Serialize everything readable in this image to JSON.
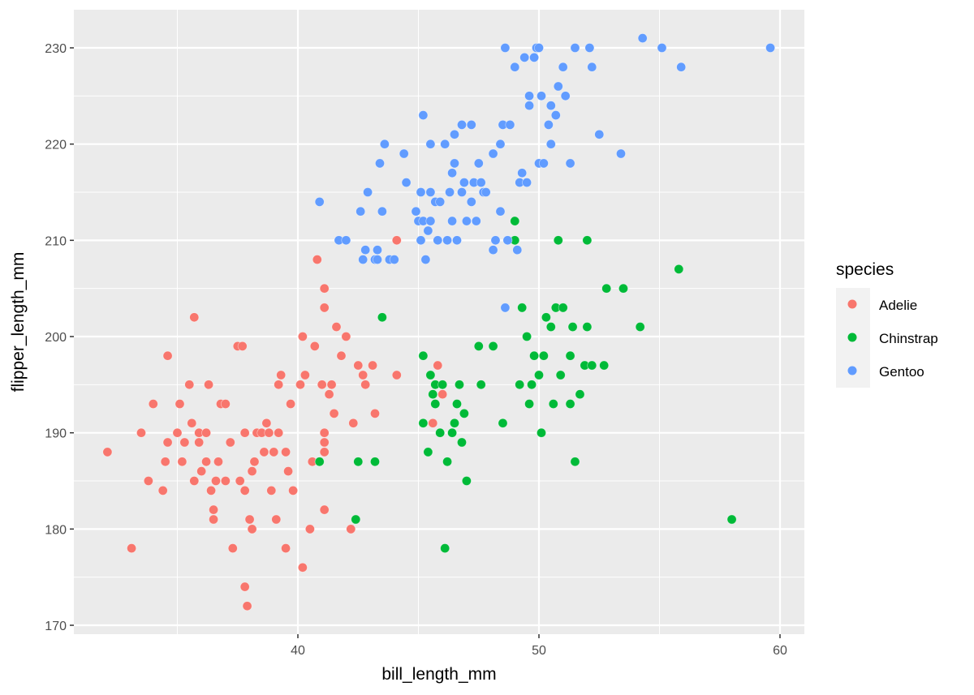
{
  "chart_data": {
    "type": "scatter",
    "title": "",
    "xlabel": "bill_length_mm",
    "ylabel": "flipper_length_mm",
    "xlim": [
      31.0,
      61.3
    ],
    "ylim": [
      168.9,
      233.9
    ],
    "x_ticks": [
      40,
      50,
      60
    ],
    "y_ticks": [
      170,
      180,
      190,
      200,
      210,
      220,
      230
    ],
    "grid": true,
    "legend": {
      "title": "species",
      "position": "right",
      "entries": [
        {
          "label": "Adelie",
          "color": "#F8766D"
        },
        {
          "label": "Chinstrap",
          "color": "#00BA38"
        },
        {
          "label": "Gentoo",
          "color": "#619CFF"
        }
      ]
    },
    "series": [
      {
        "name": "Adelie",
        "color": "#F8766D",
        "points": [
          [
            32.1,
            188
          ],
          [
            33.1,
            178
          ],
          [
            33.5,
            190
          ],
          [
            34.0,
            193
          ],
          [
            33.8,
            185
          ],
          [
            34.4,
            184
          ],
          [
            34.6,
            198
          ],
          [
            34.5,
            187
          ],
          [
            34.6,
            189
          ],
          [
            35.0,
            190
          ],
          [
            35.1,
            193
          ],
          [
            35.2,
            187
          ],
          [
            35.3,
            189
          ],
          [
            35.5,
            195
          ],
          [
            35.6,
            191
          ],
          [
            35.7,
            185
          ],
          [
            35.7,
            202
          ],
          [
            35.9,
            189
          ],
          [
            35.9,
            190
          ],
          [
            36.0,
            186
          ],
          [
            36.2,
            187
          ],
          [
            36.2,
            190
          ],
          [
            36.3,
            195
          ],
          [
            36.4,
            184
          ],
          [
            36.5,
            182
          ],
          [
            36.5,
            181
          ],
          [
            36.6,
            185
          ],
          [
            36.7,
            187
          ],
          [
            36.8,
            193
          ],
          [
            37.0,
            193
          ],
          [
            37.0,
            185
          ],
          [
            37.2,
            189
          ],
          [
            37.3,
            178
          ],
          [
            37.5,
            199
          ],
          [
            37.6,
            185
          ],
          [
            37.7,
            199
          ],
          [
            37.8,
            174
          ],
          [
            37.8,
            184
          ],
          [
            37.8,
            190
          ],
          [
            37.9,
            172
          ],
          [
            38.0,
            181
          ],
          [
            38.1,
            180
          ],
          [
            38.1,
            186
          ],
          [
            38.2,
            187
          ],
          [
            38.3,
            190
          ],
          [
            38.5,
            190
          ],
          [
            38.6,
            188
          ],
          [
            38.7,
            191
          ],
          [
            38.8,
            190
          ],
          [
            38.9,
            184
          ],
          [
            39.0,
            188
          ],
          [
            39.1,
            181
          ],
          [
            39.2,
            195
          ],
          [
            39.2,
            190
          ],
          [
            39.3,
            196
          ],
          [
            39.5,
            178
          ],
          [
            39.5,
            188
          ],
          [
            39.6,
            186
          ],
          [
            39.7,
            193
          ],
          [
            39.8,
            184
          ],
          [
            40.1,
            195
          ],
          [
            40.2,
            176
          ],
          [
            40.2,
            200
          ],
          [
            40.3,
            196
          ],
          [
            40.5,
            180
          ],
          [
            40.6,
            187
          ],
          [
            40.7,
            199
          ],
          [
            40.8,
            208
          ],
          [
            40.9,
            187
          ],
          [
            41.0,
            195
          ],
          [
            41.1,
            188
          ],
          [
            41.1,
            189
          ],
          [
            41.1,
            190
          ],
          [
            41.1,
            182
          ],
          [
            41.1,
            203
          ],
          [
            41.1,
            205
          ],
          [
            41.3,
            194
          ],
          [
            41.4,
            195
          ],
          [
            41.5,
            192
          ],
          [
            41.6,
            201
          ],
          [
            41.8,
            198
          ],
          [
            42.0,
            200
          ],
          [
            42.2,
            180
          ],
          [
            42.3,
            191
          ],
          [
            42.5,
            197
          ],
          [
            42.7,
            196
          ],
          [
            42.8,
            195
          ],
          [
            43.1,
            197
          ],
          [
            43.2,
            192
          ],
          [
            44.1,
            196
          ],
          [
            44.1,
            210
          ],
          [
            45.6,
            191
          ],
          [
            45.8,
            197
          ],
          [
            46.0,
            194
          ]
        ]
      },
      {
        "name": "Chinstrap",
        "color": "#00BA38",
        "points": [
          [
            40.9,
            187
          ],
          [
            42.4,
            181
          ],
          [
            42.5,
            187
          ],
          [
            43.2,
            187
          ],
          [
            43.5,
            202
          ],
          [
            45.2,
            198
          ],
          [
            45.2,
            191
          ],
          [
            45.4,
            188
          ],
          [
            45.5,
            196
          ],
          [
            45.6,
            194
          ],
          [
            45.7,
            193
          ],
          [
            45.7,
            195
          ],
          [
            45.9,
            190
          ],
          [
            46.0,
            195
          ],
          [
            46.1,
            178
          ],
          [
            46.2,
            187
          ],
          [
            46.4,
            190
          ],
          [
            46.5,
            191
          ],
          [
            46.6,
            193
          ],
          [
            46.7,
            195
          ],
          [
            46.8,
            189
          ],
          [
            46.9,
            192
          ],
          [
            47.0,
            185
          ],
          [
            47.5,
            199
          ],
          [
            47.6,
            195
          ],
          [
            48.1,
            199
          ],
          [
            48.5,
            191
          ],
          [
            49.0,
            210
          ],
          [
            49.0,
            212
          ],
          [
            49.2,
            195
          ],
          [
            49.3,
            203
          ],
          [
            49.5,
            200
          ],
          [
            49.6,
            193
          ],
          [
            49.7,
            195
          ],
          [
            49.8,
            198
          ],
          [
            50.0,
            196
          ],
          [
            50.1,
            190
          ],
          [
            50.2,
            198
          ],
          [
            50.3,
            202
          ],
          [
            50.5,
            201
          ],
          [
            50.6,
            193
          ],
          [
            50.7,
            203
          ],
          [
            50.8,
            210
          ],
          [
            50.9,
            196
          ],
          [
            51.0,
            203
          ],
          [
            51.3,
            193
          ],
          [
            51.3,
            198
          ],
          [
            51.4,
            201
          ],
          [
            51.5,
            187
          ],
          [
            51.7,
            194
          ],
          [
            51.9,
            197
          ],
          [
            52.0,
            201
          ],
          [
            52.0,
            210
          ],
          [
            52.2,
            197
          ],
          [
            52.7,
            197
          ],
          [
            52.8,
            205
          ],
          [
            53.5,
            205
          ],
          [
            54.2,
            201
          ],
          [
            55.8,
            207
          ],
          [
            58.0,
            181
          ]
        ]
      },
      {
        "name": "Gentoo",
        "color": "#619CFF",
        "points": [
          [
            40.9,
            214
          ],
          [
            41.7,
            210
          ],
          [
            42.0,
            210
          ],
          [
            42.6,
            213
          ],
          [
            42.7,
            208
          ],
          [
            42.8,
            209
          ],
          [
            42.9,
            215
          ],
          [
            43.2,
            208
          ],
          [
            43.3,
            209
          ],
          [
            43.3,
            208
          ],
          [
            43.4,
            218
          ],
          [
            43.5,
            213
          ],
          [
            43.6,
            220
          ],
          [
            43.8,
            208
          ],
          [
            44.0,
            208
          ],
          [
            44.4,
            219
          ],
          [
            44.5,
            216
          ],
          [
            44.9,
            213
          ],
          [
            45.0,
            212
          ],
          [
            45.1,
            210
          ],
          [
            45.1,
            215
          ],
          [
            45.2,
            212
          ],
          [
            45.2,
            223
          ],
          [
            45.3,
            208
          ],
          [
            45.4,
            211
          ],
          [
            45.5,
            212
          ],
          [
            45.5,
            215
          ],
          [
            45.5,
            220
          ],
          [
            45.7,
            214
          ],
          [
            45.8,
            210
          ],
          [
            45.9,
            214
          ],
          [
            46.1,
            220
          ],
          [
            46.2,
            210
          ],
          [
            46.3,
            215
          ],
          [
            46.4,
            212
          ],
          [
            46.4,
            217
          ],
          [
            46.5,
            221
          ],
          [
            46.6,
            210
          ],
          [
            46.8,
            215
          ],
          [
            46.9,
            216
          ],
          [
            47.0,
            212
          ],
          [
            47.2,
            214
          ],
          [
            47.3,
            216
          ],
          [
            47.4,
            212
          ],
          [
            47.5,
            218
          ],
          [
            47.6,
            216
          ],
          [
            47.7,
            215
          ],
          [
            47.8,
            215
          ],
          [
            48.1,
            209
          ],
          [
            48.2,
            210
          ],
          [
            48.4,
            213
          ],
          [
            48.4,
            220
          ],
          [
            48.5,
            222
          ],
          [
            48.6,
            230
          ],
          [
            48.7,
            210
          ],
          [
            48.8,
            222
          ],
          [
            49.0,
            228
          ],
          [
            49.2,
            216
          ],
          [
            49.3,
            217
          ],
          [
            49.4,
            229
          ],
          [
            49.5,
            216
          ],
          [
            49.6,
            225
          ],
          [
            49.8,
            229
          ],
          [
            49.9,
            230
          ],
          [
            50.0,
            218
          ],
          [
            50.1,
            225
          ],
          [
            50.2,
            218
          ],
          [
            50.4,
            222
          ],
          [
            50.5,
            224
          ],
          [
            50.7,
            223
          ],
          [
            50.8,
            226
          ],
          [
            51.1,
            225
          ],
          [
            51.3,
            218
          ],
          [
            51.5,
            230
          ],
          [
            52.1,
            230
          ],
          [
            52.2,
            228
          ],
          [
            52.5,
            221
          ],
          [
            53.4,
            219
          ],
          [
            54.3,
            231
          ],
          [
            55.1,
            230
          ],
          [
            55.9,
            228
          ],
          [
            59.6,
            230
          ],
          [
            48.6,
            203
          ],
          [
            49.1,
            209
          ],
          [
            48.1,
            219
          ],
          [
            46.8,
            222
          ],
          [
            47.2,
            222
          ],
          [
            46.5,
            218
          ],
          [
            50.0,
            230
          ],
          [
            49.6,
            224
          ],
          [
            50.5,
            220
          ],
          [
            51.0,
            228
          ]
        ]
      }
    ]
  },
  "theme": {
    "panel_background": "#EBEBEB",
    "grid_major": "#FFFFFF",
    "legend_key_background": "#F2F2F2"
  }
}
